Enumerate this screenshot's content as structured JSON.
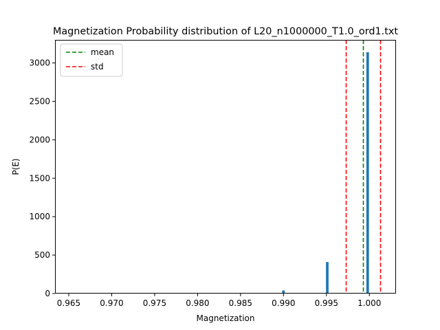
{
  "chart_data": {
    "type": "bar",
    "title": "Magnetization Probability distribution of L20_n1000000_T1.0_ord1.txt",
    "xlabel": "Magnetization",
    "ylabel": "P(E)",
    "xlim": [
      0.9634,
      1.0031
    ],
    "ylim": [
      0,
      3300
    ],
    "x_ticks": [
      0.965,
      0.97,
      0.975,
      0.98,
      0.985,
      0.99,
      0.995,
      1.0
    ],
    "x_tick_labels": [
      "0.965",
      "0.970",
      "0.975",
      "0.980",
      "0.985",
      "0.990",
      "0.995",
      "1.000"
    ],
    "y_ticks": [
      0,
      500,
      1000,
      1500,
      2000,
      2500,
      3000
    ],
    "y_tick_labels": [
      "0",
      "500",
      "1000",
      "1500",
      "2000",
      "2500",
      "3000"
    ],
    "bar_width": 0.0003,
    "bars": [
      {
        "x": 0.99,
        "value": 40
      },
      {
        "x": 0.9951,
        "value": 410
      },
      {
        "x": 0.9998,
        "value": 3140
      }
    ],
    "bar_color": "#1f77b4",
    "vlines": [
      {
        "name": "mean",
        "x": 0.9993,
        "color": "#008000"
      },
      {
        "name": "std",
        "x": 0.9973,
        "color": "#ff0000"
      },
      {
        "name": "std",
        "x": 1.0013,
        "color": "#ff0000"
      }
    ],
    "legend": {
      "placement": "top-left",
      "entries": [
        {
          "label": "mean",
          "color": "#008000"
        },
        {
          "label": "std",
          "color": "#ff0000"
        }
      ]
    },
    "grid": false
  }
}
